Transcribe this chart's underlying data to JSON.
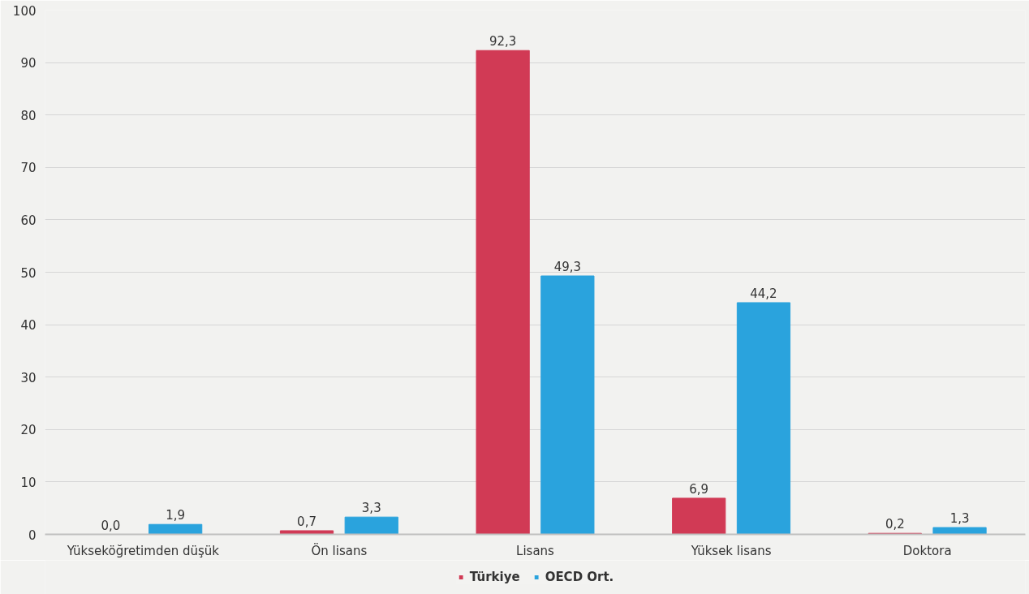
{
  "chart_data": {
    "type": "bar",
    "categories": [
      "Yükseköğretimden düşük",
      "Ön lisans",
      "Lisans",
      "Yüksek lisans",
      "Doktora"
    ],
    "series": [
      {
        "name": "Türkiye",
        "color": "#d13a55",
        "values": [
          0.0,
          0.7,
          92.3,
          6.9,
          0.2
        ],
        "value_labels": [
          "0,0",
          "0,7",
          "92,3",
          "6,9",
          "0,2"
        ]
      },
      {
        "name": "OECD Ort.",
        "color": "#2aa3dd",
        "values": [
          1.9,
          3.3,
          49.3,
          44.2,
          1.3
        ],
        "value_labels": [
          "1,9",
          "3,3",
          "49,3",
          "44,2",
          "1,3"
        ]
      }
    ],
    "ylim": [
      0,
      100
    ],
    "yticks": [
      0,
      10,
      20,
      30,
      40,
      50,
      60,
      70,
      80,
      90,
      100
    ],
    "grid": "y",
    "legend": "bottom"
  }
}
